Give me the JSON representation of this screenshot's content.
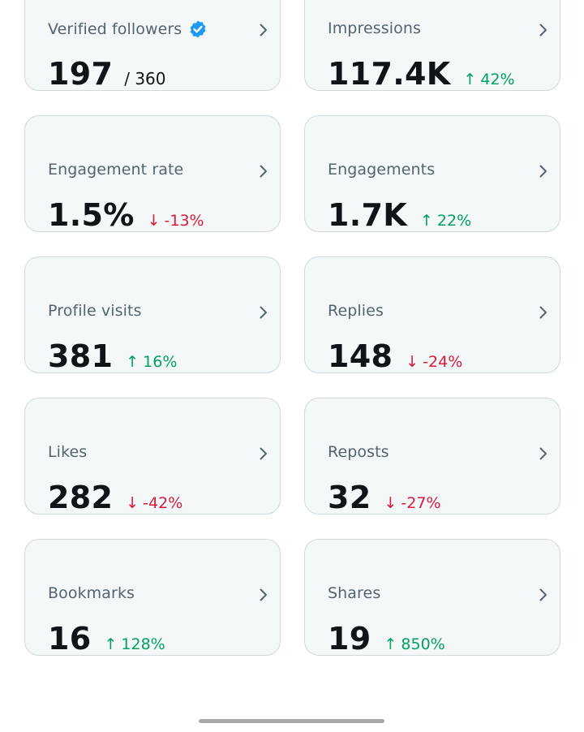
{
  "colors": {
    "card_bg": "#f5f8f8",
    "card_border": "#cfd9de",
    "title": "#536471",
    "value": "#0f1419",
    "up": "#00a060",
    "down": "#d61c3b",
    "verified": "#1d9bf0"
  },
  "metrics": [
    {
      "title": "Verified followers",
      "value": "197",
      "denominator": "/ 360",
      "verified": true
    },
    {
      "title": "Impressions",
      "value": "117.4K",
      "delta": "42%",
      "direction": "up"
    },
    {
      "title": "Engagement rate",
      "value": "1.5%",
      "delta": "-13%",
      "direction": "down"
    },
    {
      "title": "Engagements",
      "value": "1.7K",
      "delta": "22%",
      "direction": "up"
    },
    {
      "title": "Profile visits",
      "value": "381",
      "delta": "16%",
      "direction": "up"
    },
    {
      "title": "Replies",
      "value": "148",
      "delta": "-24%",
      "direction": "down"
    },
    {
      "title": "Likes",
      "value": "282",
      "delta": "-42%",
      "direction": "down"
    },
    {
      "title": "Reposts",
      "value": "32",
      "delta": "-27%",
      "direction": "down"
    },
    {
      "title": "Bookmarks",
      "value": "16",
      "delta": "128%",
      "direction": "up"
    },
    {
      "title": "Shares",
      "value": "19",
      "delta": "850%",
      "direction": "up"
    }
  ],
  "icons": {
    "chevron": "chevron-right-icon",
    "verified": "verified-badge-icon",
    "up": "arrow-up-icon",
    "down": "arrow-down-icon"
  }
}
